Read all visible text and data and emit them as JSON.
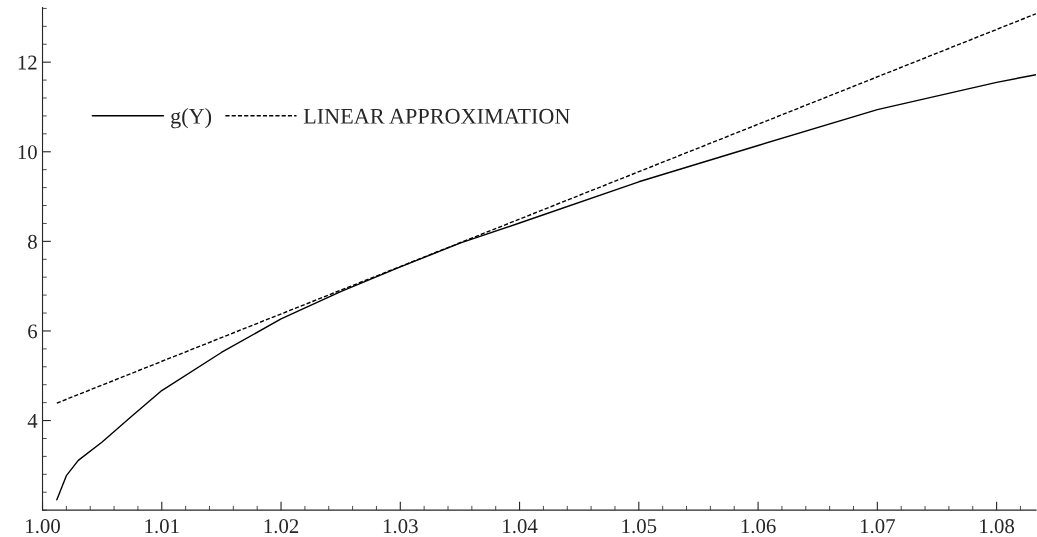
{
  "chart_data": {
    "type": "line",
    "series": [
      {
        "name": "g(Y)",
        "color": "#000000",
        "line_style": "solid",
        "x": [
          1.0012,
          1.002,
          1.003,
          1.005,
          1.0075,
          1.01,
          1.015,
          1.02,
          1.025,
          1.03,
          1.035,
          1.04,
          1.05,
          1.06,
          1.07,
          1.08,
          1.0833
        ],
        "values": [
          2.23,
          2.77,
          3.11,
          3.52,
          4.1,
          4.67,
          5.52,
          6.27,
          6.88,
          7.43,
          7.96,
          8.41,
          9.33,
          10.14,
          10.94,
          11.55,
          11.72
        ]
      },
      {
        "name": "LINEAR APPROXIMATION",
        "color": "#000000",
        "line_style": "dashed",
        "x": [
          1.0012,
          1.0833
        ],
        "values": [
          4.39,
          13.08
        ]
      }
    ],
    "xlim": [
      1.0,
      1.0833
    ],
    "ylim": [
      2.0,
      13.22
    ],
    "xticks": [
      {
        "value": 1.0,
        "label": "1.00"
      },
      1.01,
      1.02,
      1.03,
      1.04,
      1.05,
      1.06,
      1.07,
      1.08
    ],
    "yticks": [
      4,
      6,
      8,
      10,
      12
    ],
    "grid": false,
    "legend": "top left"
  }
}
